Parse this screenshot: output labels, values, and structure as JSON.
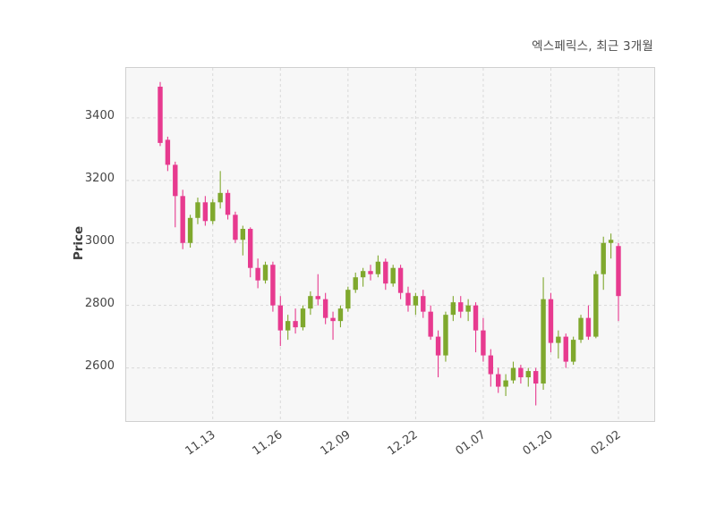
{
  "chart_data": {
    "type": "candlestick",
    "title": "엑스페릭스, 최근 3개월",
    "ylabel": "Price",
    "ylim": [
      2430,
      3560
    ],
    "yticks": [
      2600,
      2800,
      3000,
      3200,
      3400
    ],
    "grid": "dashed",
    "colors": {
      "up": "#7fa82d",
      "down": "#e73a8f"
    },
    "xticks": [
      {
        "i": 7,
        "label": "11.13"
      },
      {
        "i": 16,
        "label": "11.26"
      },
      {
        "i": 25,
        "label": "12.09"
      },
      {
        "i": 34,
        "label": "12.22"
      },
      {
        "i": 43,
        "label": "01.07"
      },
      {
        "i": 52,
        "label": "01.20"
      },
      {
        "i": 61,
        "label": "02.02"
      }
    ],
    "candles_format": [
      "open",
      "high",
      "low",
      "close"
    ],
    "candles": [
      [
        3500,
        3515,
        3310,
        3320
      ],
      [
        3330,
        3340,
        3230,
        3250
      ],
      [
        3250,
        3260,
        3050,
        3150
      ],
      [
        3150,
        3170,
        2980,
        3000
      ],
      [
        3000,
        3090,
        2985,
        3080
      ],
      [
        3080,
        3145,
        3060,
        3130
      ],
      [
        3130,
        3150,
        3055,
        3070
      ],
      [
        3070,
        3140,
        3060,
        3130
      ],
      [
        3130,
        3230,
        3110,
        3160
      ],
      [
        3160,
        3170,
        3075,
        3090
      ],
      [
        3090,
        3100,
        3000,
        3010
      ],
      [
        3010,
        3055,
        2960,
        3045
      ],
      [
        3045,
        3050,
        2890,
        2920
      ],
      [
        2920,
        2950,
        2855,
        2880
      ],
      [
        2880,
        2940,
        2870,
        2930
      ],
      [
        2930,
        2940,
        2780,
        2800
      ],
      [
        2800,
        2830,
        2670,
        2720
      ],
      [
        2720,
        2770,
        2690,
        2750
      ],
      [
        2750,
        2790,
        2710,
        2730
      ],
      [
        2730,
        2800,
        2720,
        2790
      ],
      [
        2790,
        2845,
        2770,
        2830
      ],
      [
        2830,
        2900,
        2800,
        2820
      ],
      [
        2820,
        2840,
        2740,
        2760
      ],
      [
        2760,
        2780,
        2690,
        2750
      ],
      [
        2750,
        2800,
        2730,
        2790
      ],
      [
        2790,
        2860,
        2780,
        2850
      ],
      [
        2850,
        2905,
        2840,
        2890
      ],
      [
        2890,
        2920,
        2860,
        2910
      ],
      [
        2910,
        2930,
        2880,
        2900
      ],
      [
        2900,
        2960,
        2890,
        2940
      ],
      [
        2940,
        2950,
        2850,
        2870
      ],
      [
        2870,
        2930,
        2860,
        2920
      ],
      [
        2920,
        2930,
        2820,
        2840
      ],
      [
        2840,
        2860,
        2780,
        2800
      ],
      [
        2800,
        2840,
        2770,
        2830
      ],
      [
        2830,
        2850,
        2760,
        2780
      ],
      [
        2780,
        2800,
        2690,
        2700
      ],
      [
        2700,
        2720,
        2570,
        2640
      ],
      [
        2640,
        2780,
        2620,
        2770
      ],
      [
        2770,
        2830,
        2750,
        2810
      ],
      [
        2810,
        2830,
        2760,
        2780
      ],
      [
        2780,
        2820,
        2750,
        2800
      ],
      [
        2800,
        2810,
        2650,
        2720
      ],
      [
        2720,
        2760,
        2620,
        2640
      ],
      [
        2640,
        2660,
        2540,
        2580
      ],
      [
        2580,
        2600,
        2520,
        2540
      ],
      [
        2540,
        2580,
        2510,
        2560
      ],
      [
        2560,
        2620,
        2550,
        2600
      ],
      [
        2600,
        2610,
        2550,
        2570
      ],
      [
        2570,
        2600,
        2540,
        2590
      ],
      [
        2590,
        2600,
        2480,
        2550
      ],
      [
        2550,
        2890,
        2530,
        2820
      ],
      [
        2820,
        2840,
        2650,
        2680
      ],
      [
        2680,
        2720,
        2630,
        2700
      ],
      [
        2700,
        2710,
        2600,
        2620
      ],
      [
        2620,
        2700,
        2610,
        2690
      ],
      [
        2690,
        2770,
        2680,
        2760
      ],
      [
        2760,
        2800,
        2690,
        2700
      ],
      [
        2700,
        2910,
        2695,
        2900
      ],
      [
        2900,
        3020,
        2850,
        3000
      ],
      [
        3000,
        3030,
        2950,
        3010
      ],
      [
        2990,
        3000,
        2750,
        2830
      ]
    ]
  }
}
